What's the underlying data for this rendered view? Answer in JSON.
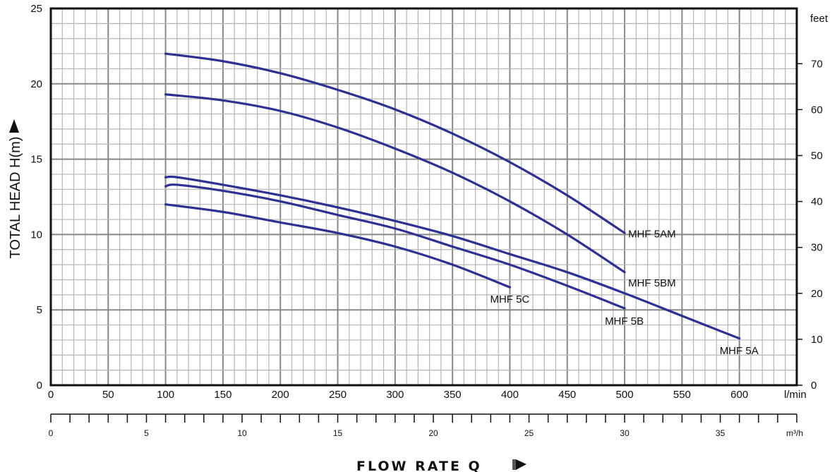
{
  "chart_data": {
    "type": "line",
    "y_axis": {
      "label": "TOTAL HEAD H(m)",
      "range": [
        0,
        25
      ],
      "ticks": [
        0,
        5,
        10,
        15,
        20,
        25
      ]
    },
    "y_axis_secondary": {
      "unit": "feet",
      "range": [
        0,
        82.02
      ],
      "ticks": [
        0,
        10,
        20,
        30,
        40,
        50,
        60,
        70
      ]
    },
    "x_axis": {
      "unit": "l/min",
      "range": [
        0,
        650
      ],
      "ticks": [
        0,
        50,
        100,
        150,
        200,
        250,
        300,
        350,
        400,
        450,
        500,
        550,
        600
      ]
    },
    "x_axis_secondary": {
      "unit": "m³/h",
      "range": [
        0,
        39
      ],
      "ticks": [
        0,
        5,
        10,
        15,
        20,
        25,
        30,
        35
      ]
    },
    "x_title": "FLOW   RATE Q",
    "grid": true,
    "series": [
      {
        "name": "MHF 5AM",
        "x": [
          100,
          150,
          200,
          250,
          300,
          350,
          400,
          450,
          500
        ],
        "y": [
          22.0,
          21.5,
          20.7,
          19.6,
          18.3,
          16.7,
          14.8,
          12.6,
          10.1
        ]
      },
      {
        "name": "MHF 5BM",
        "x": [
          100,
          150,
          200,
          250,
          300,
          350,
          400,
          450,
          500
        ],
        "y": [
          19.3,
          18.9,
          18.2,
          17.1,
          15.7,
          14.1,
          12.2,
          10.0,
          7.5
        ]
      },
      {
        "name": "MHF 5A",
        "x": [
          100,
          110,
          150,
          200,
          250,
          300,
          350,
          400,
          450,
          500,
          550,
          600
        ],
        "y": [
          13.8,
          13.8,
          13.3,
          12.6,
          11.8,
          10.9,
          9.9,
          8.7,
          7.5,
          6.1,
          4.6,
          3.1
        ]
      },
      {
        "name": "MHF 5B",
        "x": [
          100,
          110,
          150,
          200,
          250,
          300,
          350,
          400,
          450,
          500
        ],
        "y": [
          13.2,
          13.3,
          12.9,
          12.2,
          11.3,
          10.4,
          9.2,
          8.0,
          6.6,
          5.1
        ]
      },
      {
        "name": "MHF 5C",
        "x": [
          100,
          150,
          200,
          250,
          300,
          350,
          400
        ],
        "y": [
          12.0,
          11.5,
          10.8,
          10.1,
          9.2,
          8.0,
          6.5
        ]
      }
    ],
    "line_color": "#2e3192"
  }
}
